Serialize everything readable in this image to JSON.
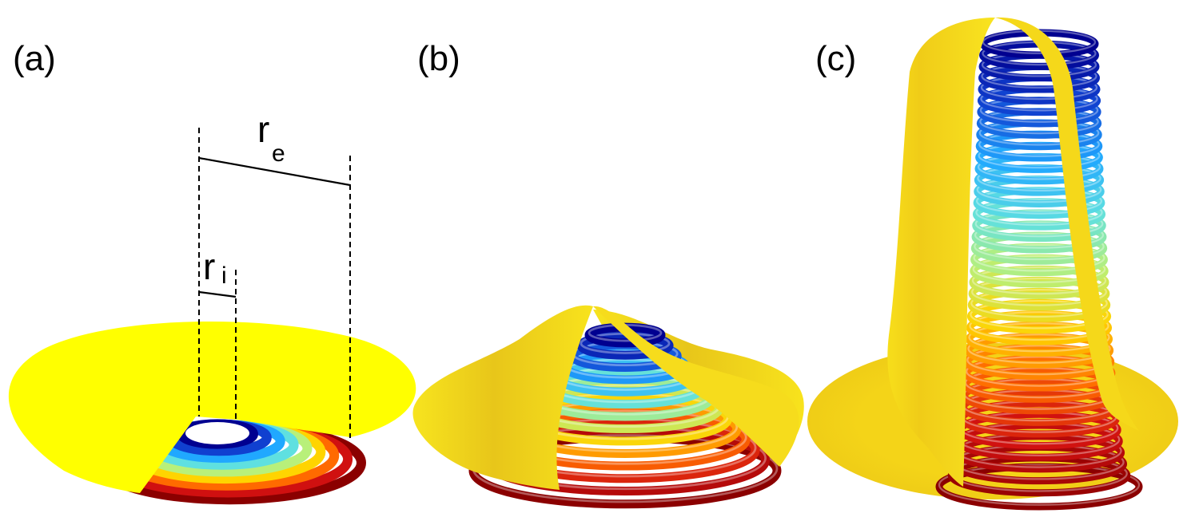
{
  "panels": [
    {
      "label": "(a)"
    },
    {
      "label": "(b)"
    },
    {
      "label": "(c)"
    }
  ],
  "annotations": {
    "r_e": {
      "main": "r",
      "sub": "e"
    },
    "r_i": {
      "main": "r",
      "sub": "i"
    }
  },
  "colors": {
    "sheet": "#ffff00",
    "sheet_shaded": "#f2d41a",
    "ring_gradient": [
      "#8b0000",
      "#d01010",
      "#ff6a00",
      "#ffd400",
      "#b8f07a",
      "#5fe0e0",
      "#20a8ff",
      "#1040d0",
      "#000090"
    ]
  }
}
